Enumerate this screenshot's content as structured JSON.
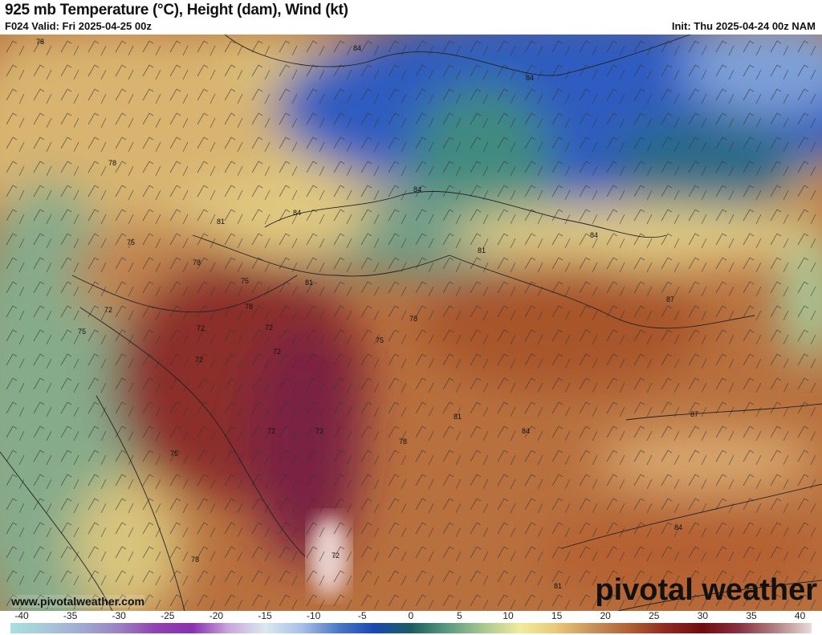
{
  "header": {
    "title": "925 mb Temperature (°C), Height (dam), Wind (kt)",
    "valid": "F024 Valid: Fri 2025-04-25 00z",
    "init": "Init: Thu 2025-04-24 00z NAM"
  },
  "map": {
    "website": "www.pivotalweather.com",
    "logo": "pivotal weather",
    "height_contour_labels": [
      "78",
      "84",
      "84",
      "78",
      "84",
      "81",
      "84",
      "75",
      "78",
      "81",
      "75",
      "81",
      "78",
      "72",
      "75",
      "72",
      "72",
      "72",
      "72",
      "78",
      "75",
      "84",
      "87",
      "81",
      "78",
      "72",
      "72",
      "75",
      "84",
      "87",
      "84",
      "81",
      "72",
      "78"
    ]
  },
  "colorbar": {
    "unit": "°C",
    "ticks": [
      "-40",
      "-35",
      "-30",
      "-25",
      "-20",
      "-15",
      "-10",
      "-5",
      "0",
      "5",
      "10",
      "15",
      "20",
      "25",
      "30",
      "35",
      "40"
    ],
    "range": [
      -40,
      40
    ],
    "colors": [
      "#a8e0dc",
      "#a8c8d8",
      "#a0a8d0",
      "#9a80c4",
      "#9040b0",
      "#8a30b0",
      "#c8a8dc",
      "#dce8f0",
      "#a8c0e8",
      "#4a78c8",
      "#1848b0",
      "#1a5e60",
      "#5a9a80",
      "#a8c890",
      "#f0ec9c",
      "#e8c878",
      "#c8905a",
      "#b06034",
      "#902a20",
      "#700c10",
      "#8a3040",
      "#b08080",
      "#e8dcd8"
    ]
  }
}
